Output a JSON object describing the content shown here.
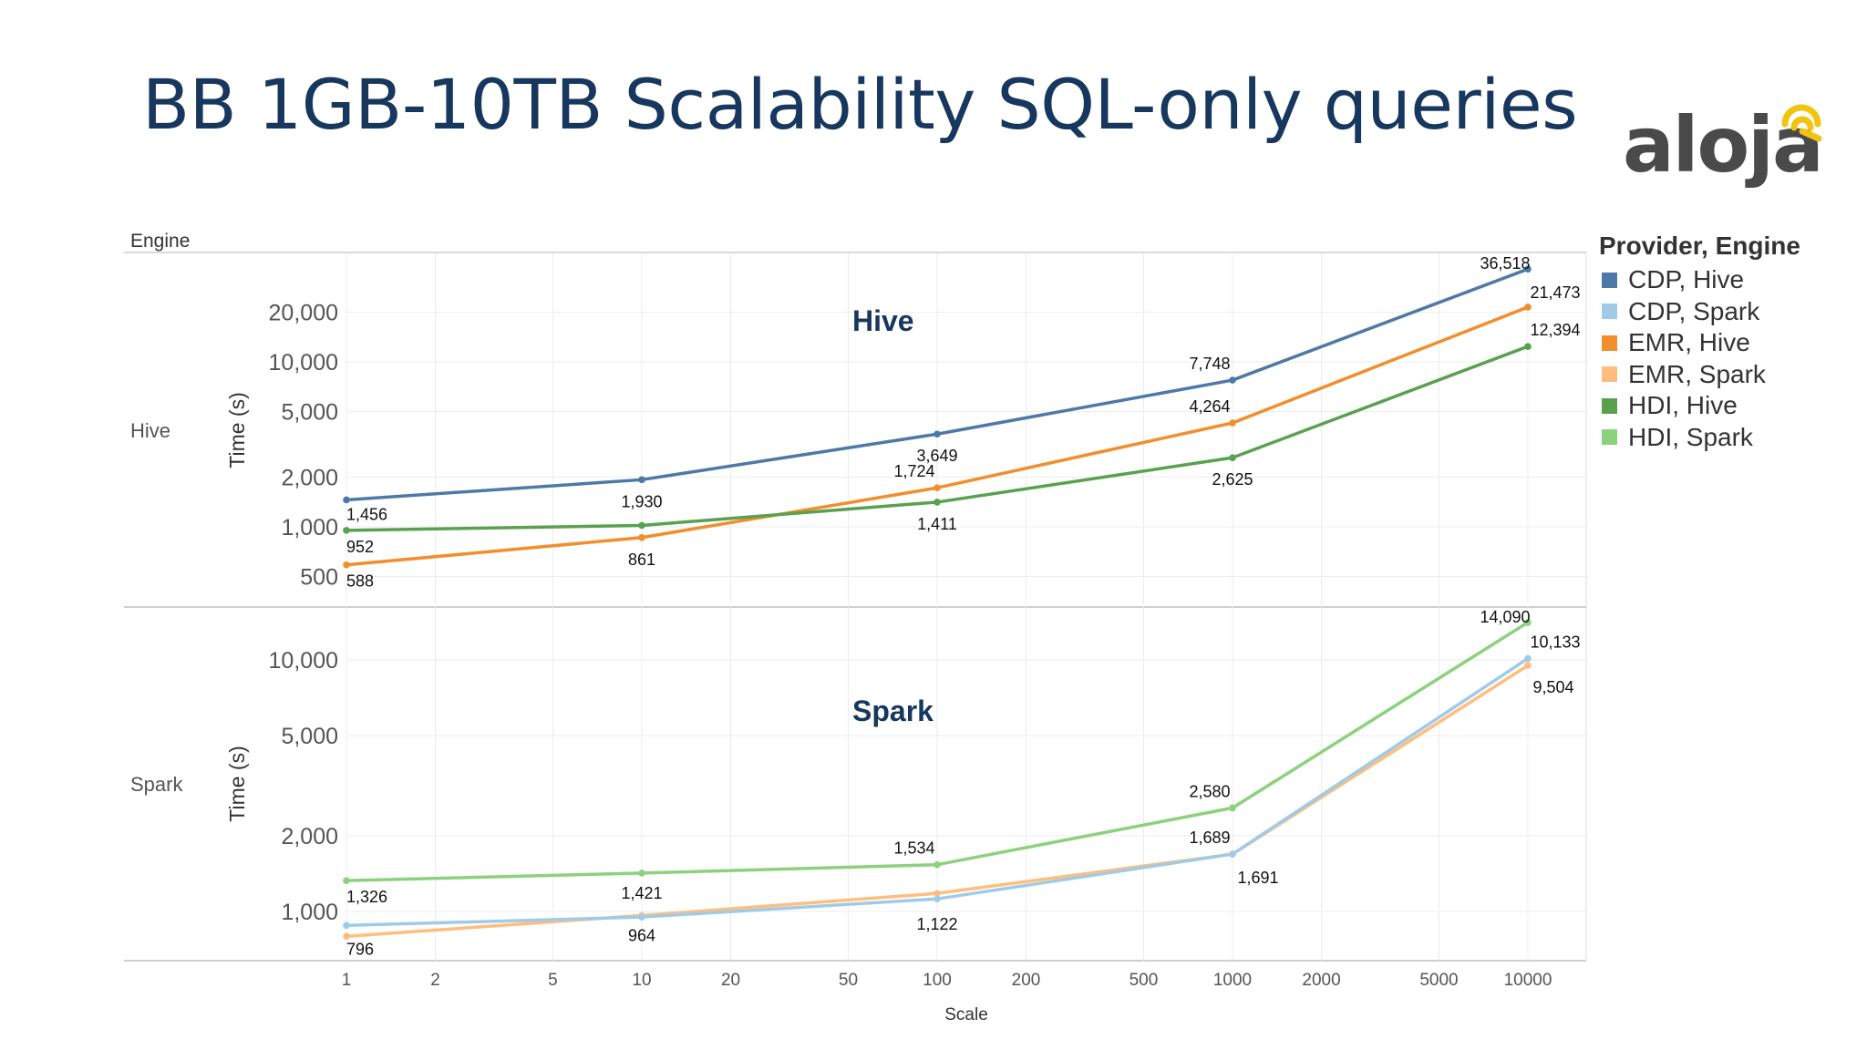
{
  "title": "BB 1GB-10TB Scalability SQL-only queries",
  "logo": {
    "text": "aloja",
    "accent": "#f2c40f"
  },
  "legend": {
    "title": "Provider, Engine",
    "items": [
      {
        "label": "CDP, Hive",
        "color": "#4e79a7"
      },
      {
        "label": "CDP, Spark",
        "color": "#a0cbe8"
      },
      {
        "label": "EMR, Hive",
        "color": "#f28e2b"
      },
      {
        "label": "EMR, Spark",
        "color": "#ffbe7d"
      },
      {
        "label": "HDI, Hive",
        "color": "#59a14f"
      },
      {
        "label": "HDI, Spark",
        "color": "#8cd17d"
      }
    ]
  },
  "chart_data": [
    {
      "type": "line",
      "row_label": "Hive",
      "overlay_label": "Hive",
      "header_label": "Engine",
      "xlabel": "Scale",
      "ylabel": "Time (s)",
      "x_scale": "log",
      "y_scale": "log",
      "x": [
        1,
        10,
        100,
        1000,
        10000
      ],
      "yticks": [
        "500",
        "1,000",
        "2,000",
        "5,000",
        "10,000",
        "20,000"
      ],
      "ytick_values": [
        500,
        1000,
        2000,
        5000,
        10000,
        20000
      ],
      "ylim": [
        430,
        40000
      ],
      "series": [
        {
          "name": "CDP, Hive",
          "color": "#4e79a7",
          "values": [
            1456,
            1930,
            3649,
            7748,
            36518
          ],
          "labels": [
            "1,456",
            "1,930",
            "3,649",
            "7,748",
            "36,518"
          ]
        },
        {
          "name": "EMR, Hive",
          "color": "#f28e2b",
          "values": [
            588,
            861,
            1724,
            4264,
            21473
          ],
          "labels": [
            "588",
            "861",
            "1,724",
            "4,264",
            "21,473"
          ]
        },
        {
          "name": "HDI, Hive",
          "color": "#59a14f",
          "values": [
            952,
            1020,
            1411,
            2625,
            12394
          ],
          "labels": [
            "952",
            "",
            "1,411",
            "2,625",
            "12,394"
          ]
        }
      ]
    },
    {
      "type": "line",
      "row_label": "Spark",
      "overlay_label": "Spark",
      "xlabel": "Scale",
      "ylabel": "Time (s)",
      "x_scale": "log",
      "y_scale": "log",
      "x": [
        1,
        10,
        100,
        1000,
        10000
      ],
      "yticks": [
        "1,000",
        "2,000",
        "5,000",
        "10,000"
      ],
      "ytick_values": [
        1000,
        2000,
        5000,
        10000
      ],
      "ylim": [
        720,
        15500
      ],
      "series": [
        {
          "name": "HDI, Spark",
          "color": "#8cd17d",
          "values": [
            1326,
            1421,
            1534,
            2580,
            14090
          ],
          "labels": [
            "1,326",
            "1,421",
            "1,534",
            "2,580",
            "14,090"
          ]
        },
        {
          "name": "EMR, Spark",
          "color": "#ffbe7d",
          "values": [
            796,
            964,
            1180,
            1689,
            9504
          ],
          "labels": [
            "796",
            "964",
            "",
            "1,689",
            "9,504"
          ]
        },
        {
          "name": "CDP, Spark",
          "color": "#a0cbe8",
          "values": [
            880,
            950,
            1122,
            1691,
            10133
          ],
          "labels": [
            "",
            "",
            "1,122",
            "1,691",
            "10,133"
          ]
        }
      ]
    }
  ],
  "x_axis": {
    "label": "Scale",
    "ticks": [
      "1",
      "2",
      "5",
      "10",
      "20",
      "50",
      "100",
      "200",
      "500",
      "1000",
      "2000",
      "5000",
      "10000"
    ],
    "tick_values": [
      1,
      2,
      5,
      10,
      20,
      50,
      100,
      200,
      500,
      1000,
      2000,
      5000,
      10000
    ]
  }
}
